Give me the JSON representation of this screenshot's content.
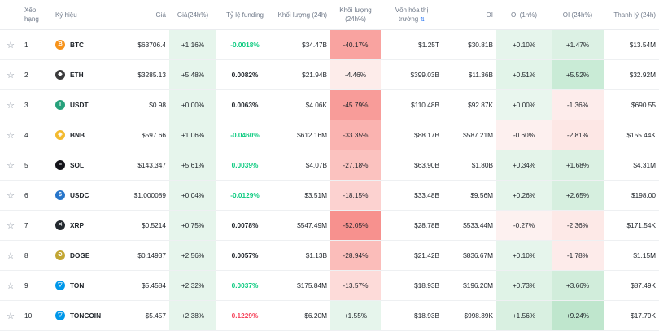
{
  "headers": {
    "rank": "Xếp hạng",
    "symbol": "Ký hiệu",
    "price": "Giá",
    "change24h": "Giá(24h%)",
    "funding": "Tỷ lệ funding",
    "volume": "Khối lượng (24h)",
    "volume_pct": "Khối lượng (24h%)",
    "mcap": "Vốn hóa thị trường",
    "oi": "OI",
    "oi1h": "OI (1h%)",
    "oi24h": "OI (24h%)",
    "liq": "Thanh lý (24h)"
  },
  "rows": [
    {
      "rank": "1",
      "symbol": "BTC",
      "icon": "bitcoin-icon",
      "icon_color": "#f7931a",
      "icon_glyph": "₿",
      "price": "$63706.4",
      "change": "+1.16%",
      "funding": "-0.0018%",
      "funding_sign": "pos",
      "volume": "$34.47B",
      "volume_pct": "-40.17%",
      "vp_bg": "#f9a3a0",
      "mcap": "$1.25T",
      "oi": "$30.81B",
      "oi1h": "+0.10%",
      "oi1h_bg": "#e6f5ec",
      "oi24h": "+1.47%",
      "oi24h_bg": "#dcf1e4",
      "liq": "$13.54M"
    },
    {
      "rank": "2",
      "symbol": "ETH",
      "icon": "ethereum-icon",
      "icon_color": "#3c3c3d",
      "icon_glyph": "◆",
      "price": "$3285.13",
      "change": "+5.48%",
      "funding": "0.0082%",
      "funding_sign": "neu",
      "volume": "$21.94B",
      "volume_pct": "-4.46%",
      "vp_bg": "#fdecea",
      "mcap": "$399.03B",
      "oi": "$11.36B",
      "oi1h": "+0.51%",
      "oi1h_bg": "#e2f4e9",
      "oi24h": "+5.52%",
      "oi24h_bg": "#c9ebd6",
      "liq": "$32.92M"
    },
    {
      "rank": "3",
      "symbol": "USDT",
      "icon": "tether-icon",
      "icon_color": "#26a17b",
      "icon_glyph": "T",
      "price": "$0.98",
      "change": "+0.00%",
      "funding": "0.0063%",
      "funding_sign": "neu",
      "volume": "$4.06K",
      "volume_pct": "-45.79%",
      "vp_bg": "#f89c99",
      "mcap": "$110.48B",
      "oi": "$92.87K",
      "oi1h": "+0.00%",
      "oi1h_bg": "#e9f6ee",
      "oi24h": "-1.36%",
      "oi24h_bg": "#fdeceb",
      "liq": "$690.55"
    },
    {
      "rank": "4",
      "symbol": "BNB",
      "icon": "bnb-icon",
      "icon_color": "#f3ba2f",
      "icon_glyph": "◈",
      "price": "$597.66",
      "change": "+1.06%",
      "funding": "-0.0460%",
      "funding_sign": "pos",
      "volume": "$612.16M",
      "volume_pct": "-33.35%",
      "vp_bg": "#fab3b0",
      "mcap": "$88.17B",
      "oi": "$587.21M",
      "oi1h": "-0.60%",
      "oi1h_bg": "#fdf0ef",
      "oi24h": "-2.81%",
      "oi24h_bg": "#fde7e5",
      "liq": "$155.44K"
    },
    {
      "rank": "5",
      "symbol": "SOL",
      "icon": "solana-icon",
      "icon_color": "#14141a",
      "icon_glyph": "≡",
      "price": "$143.347",
      "change": "+5.61%",
      "funding": "0.0039%",
      "funding_sign": "pos",
      "volume": "$4.07B",
      "volume_pct": "-27.18%",
      "vp_bg": "#fbc2bf",
      "mcap": "$63.90B",
      "oi": "$1.80B",
      "oi1h": "+0.34%",
      "oi1h_bg": "#e4f4ea",
      "oi24h": "+1.68%",
      "oi24h_bg": "#dbf1e3",
      "liq": "$4.31M"
    },
    {
      "rank": "6",
      "symbol": "USDC",
      "icon": "usdc-icon",
      "icon_color": "#2775ca",
      "icon_glyph": "$",
      "price": "$1.000089",
      "change": "+0.04%",
      "funding": "-0.0129%",
      "funding_sign": "pos",
      "volume": "$3.51M",
      "volume_pct": "-18.15%",
      "vp_bg": "#fcd2d0",
      "mcap": "$33.48B",
      "oi": "$9.56M",
      "oi1h": "+0.26%",
      "oi1h_bg": "#e5f5eb",
      "oi24h": "+2.65%",
      "oi24h_bg": "#d6efdf",
      "liq": "$198.00"
    },
    {
      "rank": "7",
      "symbol": "XRP",
      "icon": "xrp-icon",
      "icon_color": "#23292f",
      "icon_glyph": "✕",
      "price": "$0.5214",
      "change": "+0.75%",
      "funding": "0.0078%",
      "funding_sign": "neu",
      "volume": "$547.49M",
      "volume_pct": "-52.05%",
      "vp_bg": "#f7918e",
      "mcap": "$28.78B",
      "oi": "$533.44M",
      "oi1h": "-0.27%",
      "oi1h_bg": "#fdf1f0",
      "oi24h": "-2.36%",
      "oi24h_bg": "#fde9e7",
      "liq": "$171.54K"
    },
    {
      "rank": "8",
      "symbol": "DOGE",
      "icon": "dogecoin-icon",
      "icon_color": "#c2a633",
      "icon_glyph": "Ð",
      "price": "$0.14937",
      "change": "+2.56%",
      "funding": "0.0057%",
      "funding_sign": "neu",
      "volume": "$1.13B",
      "volume_pct": "-28.94%",
      "vp_bg": "#fbbdba",
      "mcap": "$21.42B",
      "oi": "$836.67M",
      "oi1h": "+0.10%",
      "oi1h_bg": "#e6f5ec",
      "oi24h": "-1.78%",
      "oi24h_bg": "#fdebea",
      "liq": "$1.15M"
    },
    {
      "rank": "9",
      "symbol": "TON",
      "icon": "toncoin-icon",
      "icon_color": "#0098ea",
      "icon_glyph": "▽",
      "price": "$5.4584",
      "change": "+2.32%",
      "funding": "0.0037%",
      "funding_sign": "pos",
      "volume": "$175.84M",
      "volume_pct": "-13.57%",
      "vp_bg": "#fddbd9",
      "mcap": "$18.93B",
      "oi": "$196.20M",
      "oi1h": "+0.73%",
      "oi1h_bg": "#e0f3e7",
      "oi24h": "+3.66%",
      "oi24h_bg": "#d1eddb",
      "liq": "$87.49K"
    },
    {
      "rank": "10",
      "symbol": "TONCOIN",
      "icon": "toncoin-icon",
      "icon_color": "#0098ea",
      "icon_glyph": "▽",
      "price": "$5.457",
      "change": "+2.38%",
      "funding": "0.1229%",
      "funding_sign": "neg",
      "volume": "$6.20M",
      "volume_pct": "+1.55%",
      "vp_bg": "#e6f5ec",
      "mcap": "$18.93B",
      "oi": "$998.39K",
      "oi1h": "+1.56%",
      "oi1h_bg": "#d9f0e1",
      "oi24h": "+9.24%",
      "oi24h_bg": "#bfe6cd",
      "liq": "$17.79K"
    }
  ],
  "colors": {
    "change_bg": "#e6f5ec",
    "funding_pos": "#0ecb81",
    "funding_neg": "#f6465d"
  }
}
